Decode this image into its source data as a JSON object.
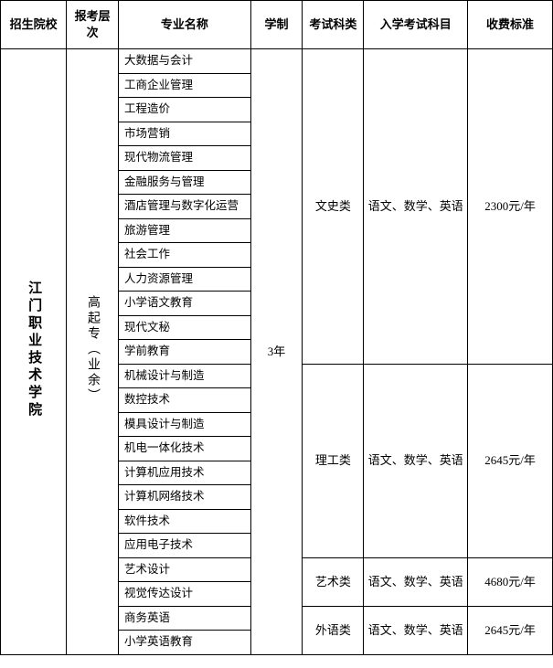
{
  "headers": {
    "school": "招生院校",
    "level": "报考层次",
    "major": "专业名称",
    "years": "学制",
    "category": "考试科类",
    "subjects": "入学考试科目",
    "fee": "收费标准"
  },
  "school": "江门职业技术学院",
  "level": "高起专（业余）",
  "years": "3年",
  "groups": [
    {
      "category": "文史类",
      "subjects": "语文、数学、英语",
      "fee": "2300元/年",
      "majors": [
        "大数据与会计",
        "工商企业管理",
        "工程造价",
        "市场营销",
        "现代物流管理",
        "金融服务与管理",
        "酒店管理与数字化运营",
        "旅游管理",
        "社会工作",
        "人力资源管理",
        "小学语文教育",
        "现代文秘",
        "学前教育"
      ]
    },
    {
      "category": "理工类",
      "subjects": "语文、数学、英语",
      "fee": "2645元/年",
      "majors": [
        "机械设计与制造",
        "数控技术",
        "模具设计与制造",
        "机电一体化技术",
        "计算机应用技术",
        "计算机网络技术",
        "软件技术",
        "应用电子技术"
      ]
    },
    {
      "category": "艺术类",
      "subjects": "语文、数学、英语",
      "fee": "4680元/年",
      "majors": [
        "艺术设计",
        "视觉传达设计"
      ]
    },
    {
      "category": "外语类",
      "subjects": "语文、数学、英语",
      "fee": "2645元/年",
      "majors": [
        "商务英语",
        "小学英语教育"
      ]
    }
  ]
}
